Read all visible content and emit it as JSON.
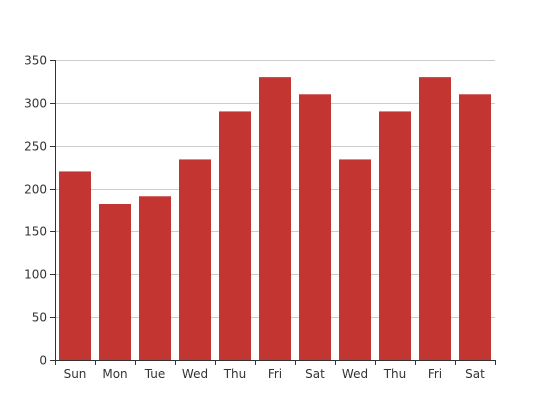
{
  "chart_data": {
    "type": "bar",
    "title": "",
    "xlabel": "",
    "ylabel": "",
    "categories": [
      "Sun",
      "Mon",
      "Tue",
      "Wed",
      "Thu",
      "Fri",
      "Sat",
      "Wed",
      "Thu",
      "Fri",
      "Sat"
    ],
    "values": [
      220,
      182,
      191,
      234,
      290,
      330,
      310,
      234,
      290,
      330,
      310
    ],
    "ylim": [
      0,
      350
    ],
    "yticks": [
      0,
      50,
      100,
      150,
      200,
      250,
      300,
      350
    ],
    "grid": true,
    "legend": false,
    "bar_color": "#c23531"
  }
}
